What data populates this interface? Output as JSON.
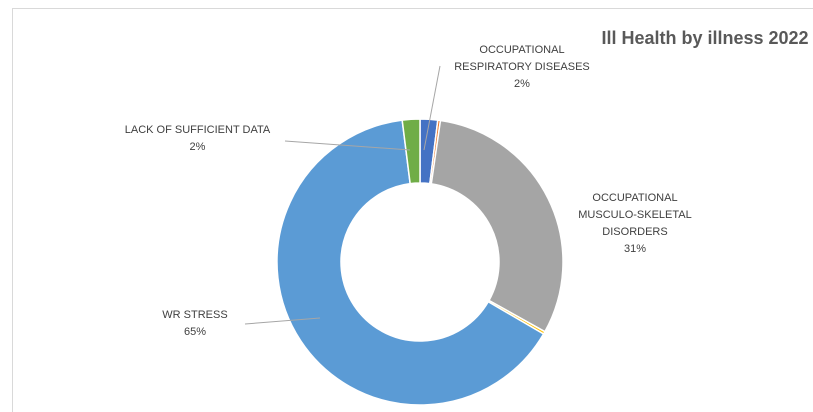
{
  "chart_data": {
    "type": "donut",
    "title": "Ill Health by illness 2022",
    "categories": [
      "OCCUPATIONAL RESPIRATORY DISEASES",
      null,
      "OCCUPATIONAL MUSCULO-SKELETAL DISORDERS",
      null,
      "WR STRESS",
      "LACK OF SUFFICIENT DATA"
    ],
    "values": [
      2,
      0.3,
      31,
      0.3,
      65,
      2
    ],
    "value_labels": [
      "2%",
      null,
      "31%",
      null,
      "65%",
      "2%"
    ],
    "colors": [
      "#4472c4",
      "#ed7d31",
      "#a5a5a5",
      "#ffc000",
      "#5b9bd5",
      "#70ad47"
    ]
  }
}
